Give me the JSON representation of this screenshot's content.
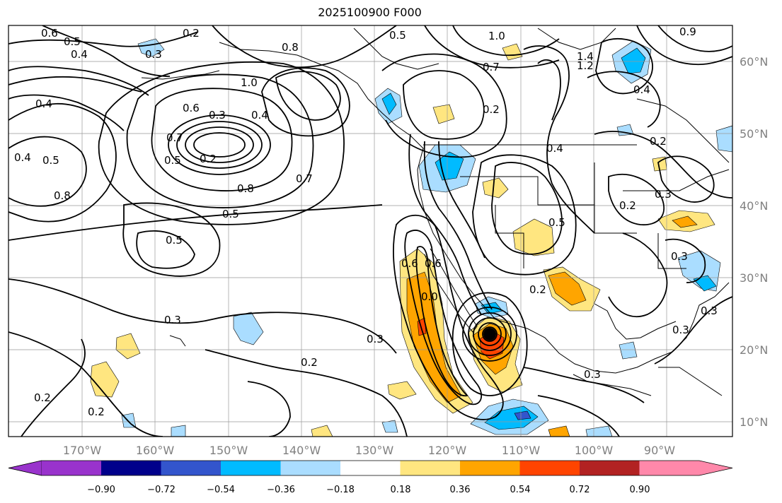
{
  "title": "2025100900 F000",
  "map": {
    "lon_labels": [
      "170°W",
      "160°W",
      "150°W",
      "140°W",
      "130°W",
      "120°W",
      "110°W",
      "100°W",
      "90°W"
    ],
    "lat_labels": [
      "60°N",
      "50°N",
      "40°N",
      "30°N",
      "20°N",
      "10°N"
    ]
  },
  "contour_labels": [
    {
      "text": "0.6"
    },
    {
      "text": "0.5"
    },
    {
      "text": "0.4"
    },
    {
      "text": "0.3"
    },
    {
      "text": "0.2"
    },
    {
      "text": "0.8"
    },
    {
      "text": "0.5"
    },
    {
      "text": "1.0"
    },
    {
      "text": "0.7"
    },
    {
      "text": "1.4"
    },
    {
      "text": "1.2"
    },
    {
      "text": "0.9"
    },
    {
      "text": "0.4"
    },
    {
      "text": "0.4"
    },
    {
      "text": "1.0"
    },
    {
      "text": "0.6"
    },
    {
      "text": "0.3"
    },
    {
      "text": "0.4"
    },
    {
      "text": "0.2"
    },
    {
      "text": "0.2"
    },
    {
      "text": "0.4"
    },
    {
      "text": "0.5"
    },
    {
      "text": "0.8"
    },
    {
      "text": "0.8"
    },
    {
      "text": "0.7"
    },
    {
      "text": "0.5"
    },
    {
      "text": "0.5"
    },
    {
      "text": "0.4"
    },
    {
      "text": "0.5"
    },
    {
      "text": "0.2"
    },
    {
      "text": "0.3"
    },
    {
      "text": "0.6"
    },
    {
      "text": "0.6"
    },
    {
      "text": "0.2"
    },
    {
      "text": "0.3"
    },
    {
      "text": "0.3"
    },
    {
      "text": "0.3"
    },
    {
      "text": "0.2"
    },
    {
      "text": "0.3"
    },
    {
      "text": "0.2"
    },
    {
      "text": "0.2"
    },
    {
      "text": "0.3"
    },
    {
      "text": "0.3"
    },
    {
      "text": "0.2"
    },
    {
      "text": "0.7"
    },
    {
      "text": "0.5"
    },
    {
      "text": "0.0"
    }
  ],
  "colorbar": {
    "labels": [
      "−0.90",
      "−0.72",
      "−0.54",
      "−0.36",
      "−0.18",
      "0.18",
      "0.36",
      "0.54",
      "0.72",
      "0.90"
    ],
    "colors": [
      "#9933cc",
      "#00008b",
      "#3355cc",
      "#00bbff",
      "#aaddff",
      "#ffffff",
      "#ffe680",
      "#ffa500",
      "#ff4400",
      "#b22222",
      "#ff88aa"
    ]
  }
}
